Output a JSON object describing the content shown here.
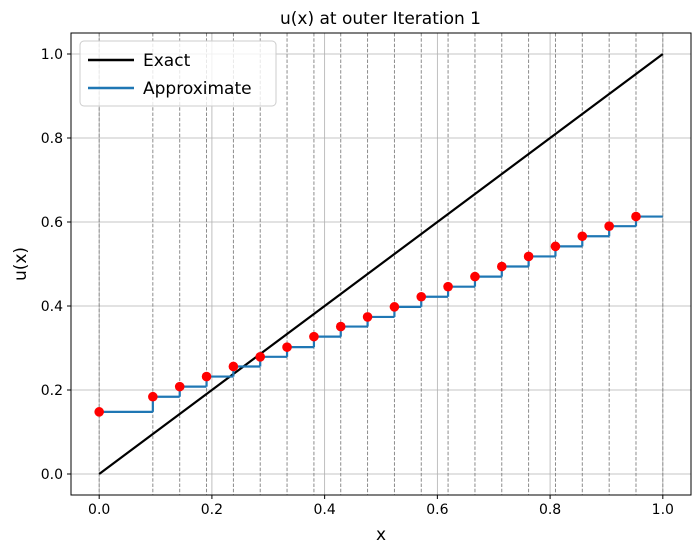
{
  "chart_data": {
    "type": "line",
    "title": "u(x) at outer Iteration 1",
    "xlabel": "x",
    "ylabel": "u(x)",
    "xlim": [
      -0.05,
      1.05
    ],
    "ylim": [
      -0.05,
      1.05
    ],
    "xticks": [
      0.0,
      0.2,
      0.4,
      0.6,
      0.8,
      1.0
    ],
    "yticks": [
      0.0,
      0.2,
      0.4,
      0.6,
      0.8,
      1.0
    ],
    "xtick_labels": [
      "0.0",
      "0.2",
      "0.4",
      "0.6",
      "0.8",
      "1.0"
    ],
    "ytick_labels": [
      "0.0",
      "0.2",
      "0.4",
      "0.6",
      "0.8",
      "1.0"
    ],
    "grid": true,
    "legend_position": "top-left",
    "breakpoints": [
      0.0,
      0.0952,
      0.1429,
      0.1905,
      0.2381,
      0.2857,
      0.3333,
      0.381,
      0.4286,
      0.4762,
      0.5238,
      0.5714,
      0.619,
      0.6667,
      0.7143,
      0.7619,
      0.8095,
      0.8571,
      0.9048,
      0.9524,
      1.0
    ],
    "series": [
      {
        "name": "Exact",
        "kind": "line",
        "color": "#000000",
        "x": [
          0.0,
          1.0
        ],
        "y": [
          0.0,
          1.0
        ]
      },
      {
        "name": "Approximate",
        "kind": "step",
        "color": "#1f77b4",
        "x": [
          0.0,
          0.0952,
          0.1429,
          0.1905,
          0.2381,
          0.2857,
          0.3333,
          0.381,
          0.4286,
          0.4762,
          0.5238,
          0.5714,
          0.619,
          0.6667,
          0.7143,
          0.7619,
          0.8095,
          0.8571,
          0.9048,
          0.9524
        ],
        "y": [
          0.148,
          0.184,
          0.208,
          0.232,
          0.256,
          0.279,
          0.302,
          0.327,
          0.351,
          0.374,
          0.398,
          0.422,
          0.446,
          0.47,
          0.494,
          0.518,
          0.542,
          0.566,
          0.59,
          0.613
        ],
        "x_end": 1.0
      },
      {
        "name": "",
        "kind": "scatter",
        "color": "#ff0000",
        "x": [
          0.0,
          0.0952,
          0.1429,
          0.1905,
          0.2381,
          0.2857,
          0.3333,
          0.381,
          0.4286,
          0.4762,
          0.5238,
          0.5714,
          0.619,
          0.6667,
          0.7143,
          0.7619,
          0.8095,
          0.8571,
          0.9048,
          0.9524
        ],
        "y": [
          0.148,
          0.184,
          0.208,
          0.232,
          0.256,
          0.279,
          0.302,
          0.327,
          0.351,
          0.374,
          0.398,
          0.422,
          0.446,
          0.47,
          0.494,
          0.518,
          0.542,
          0.566,
          0.59,
          0.613
        ]
      }
    ]
  }
}
